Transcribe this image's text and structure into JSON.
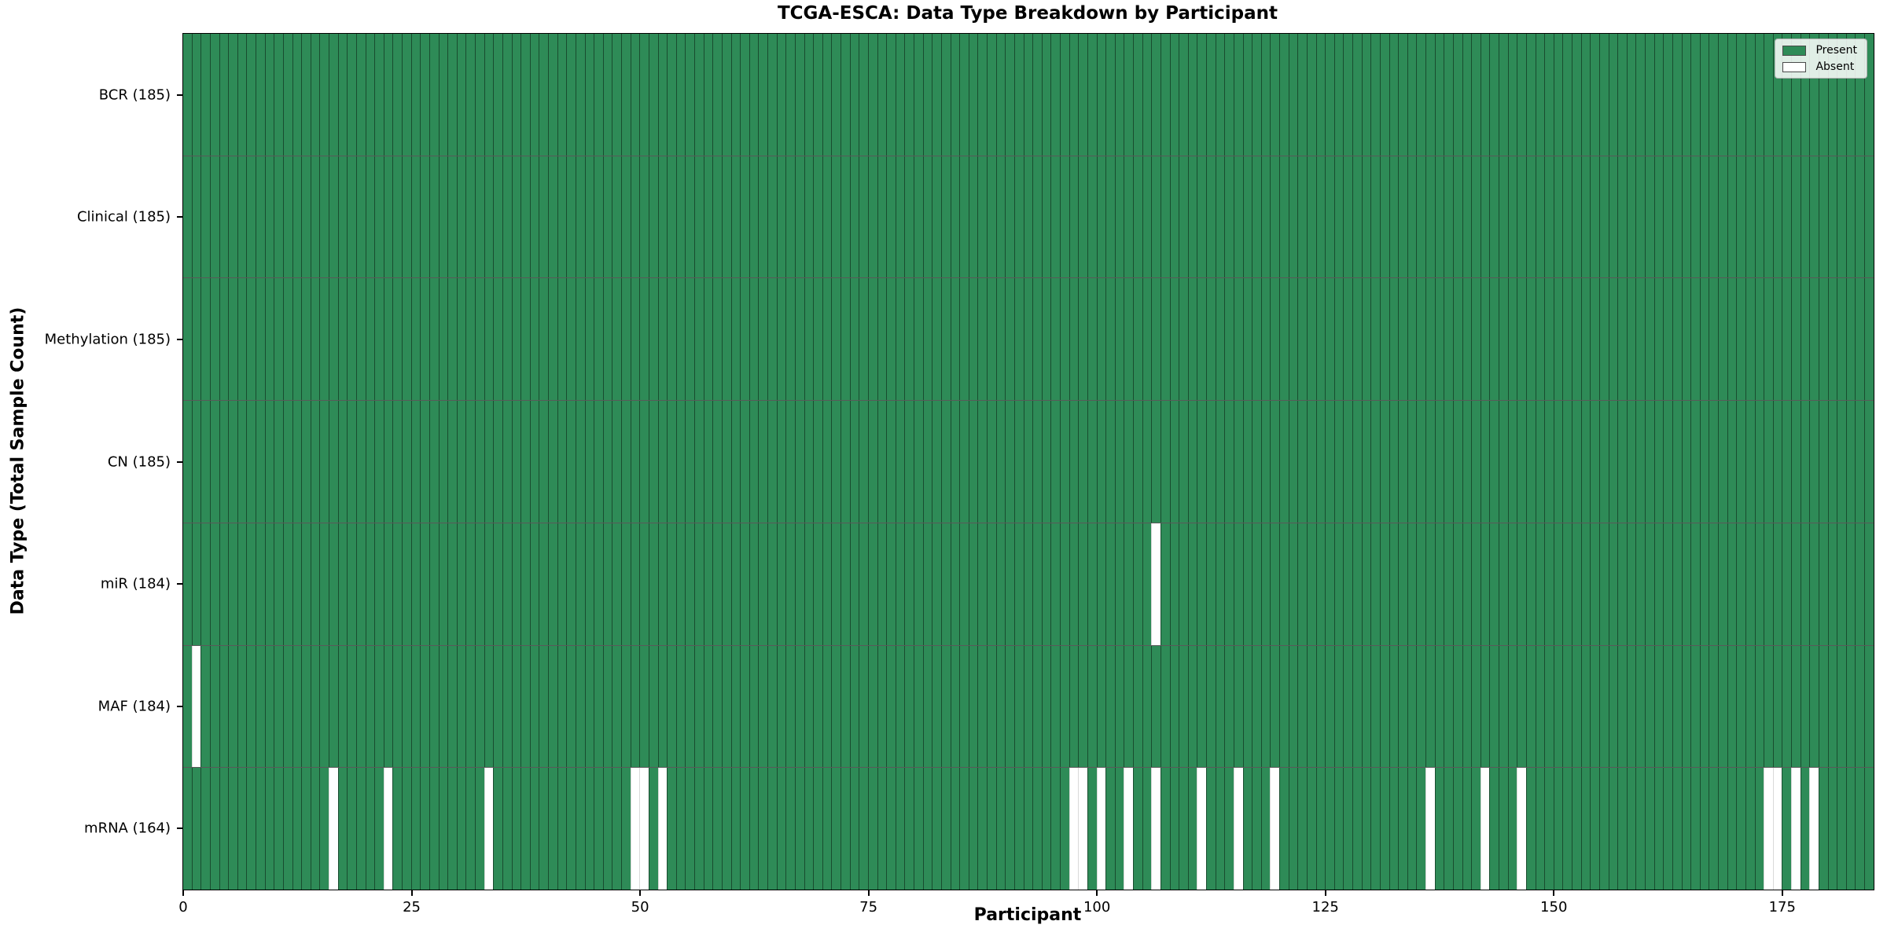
{
  "chart_data": {
    "type": "heatmap",
    "title": "TCGA-ESCA: Data Type Breakdown by Participant",
    "xlabel": "Participant",
    "ylabel": "Data Type (Total Sample Count)",
    "n_participants": 185,
    "x_range": [
      0,
      185
    ],
    "x_ticks": [
      0,
      25,
      50,
      75,
      100,
      125,
      150,
      175
    ],
    "grid": false,
    "legend_position": "upper right",
    "rows": [
      {
        "label": "BCR (185)",
        "name": "BCR",
        "count": 185,
        "absent": []
      },
      {
        "label": "Clinical (185)",
        "name": "Clinical",
        "count": 185,
        "absent": []
      },
      {
        "label": "Methylation (185)",
        "name": "Methylation",
        "count": 185,
        "absent": []
      },
      {
        "label": "CN (185)",
        "name": "CN",
        "count": 185,
        "absent": []
      },
      {
        "label": "miR (184)",
        "name": "miR",
        "count": 184,
        "absent": [
          106
        ]
      },
      {
        "label": "MAF (184)",
        "name": "MAF",
        "count": 184,
        "absent": [
          1
        ]
      },
      {
        "label": "mRNA (164)",
        "name": "mRNA",
        "count": 164,
        "absent": [
          16,
          22,
          33,
          49,
          50,
          52,
          97,
          98,
          100,
          103,
          106,
          111,
          115,
          119,
          136,
          142,
          146,
          173,
          174,
          176,
          178
        ]
      }
    ],
    "legend": [
      {
        "label": "Present",
        "color": "#2E8B57"
      },
      {
        "label": "Absent",
        "color": "#FFFFFF"
      }
    ],
    "colors": {
      "present": "#2E8B57",
      "absent": "#FFFFFF",
      "edge": "rgba(0,0,0,0.45)",
      "spine": "#000000"
    }
  }
}
